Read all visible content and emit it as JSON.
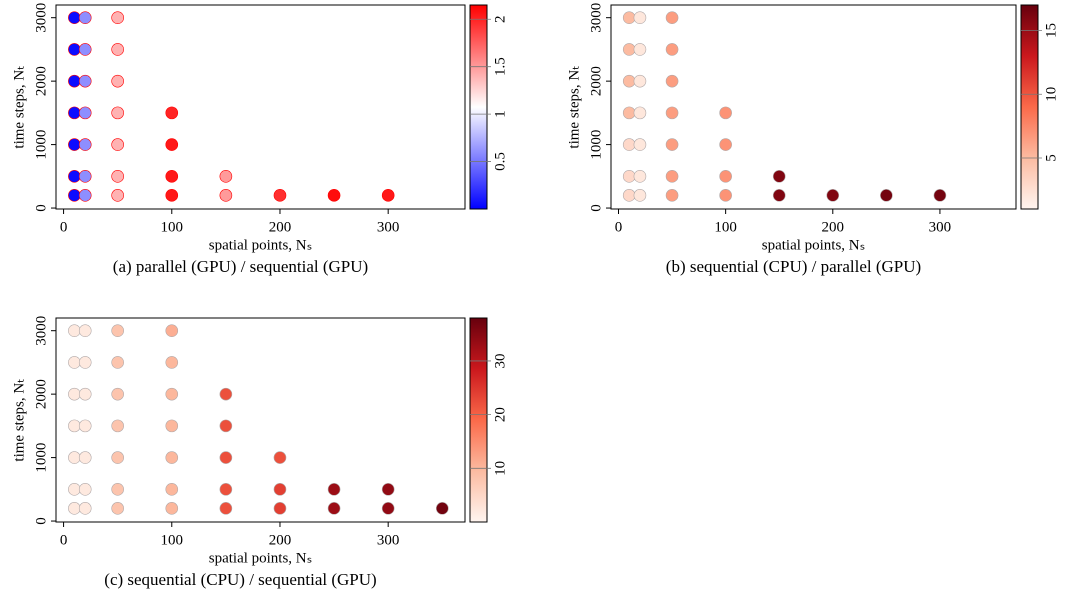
{
  "chart_data": [
    {
      "type": "scatter",
      "caption": "(a) parallel (GPU) / sequential (GPU)",
      "xlabel": "spatial points, Nₛ",
      "ylabel": "time steps, Nₜ",
      "x": [
        10,
        10,
        10,
        10,
        10,
        10,
        10,
        20,
        20,
        20,
        20,
        20,
        20,
        20,
        50,
        50,
        50,
        50,
        50,
        50,
        50,
        100,
        100,
        100,
        100,
        150,
        150,
        200,
        250,
        300
      ],
      "y": [
        200,
        500,
        1000,
        1500,
        2000,
        2500,
        3000,
        200,
        500,
        1000,
        1500,
        2000,
        2500,
        3000,
        200,
        500,
        1000,
        1500,
        2000,
        2500,
        3000,
        200,
        500,
        1000,
        1500,
        200,
        500,
        200,
        200,
        200
      ],
      "c": [
        0.05,
        0.05,
        0.05,
        0.05,
        0.05,
        0.05,
        0.05,
        0.6,
        0.6,
        0.6,
        0.6,
        0.6,
        0.6,
        0.6,
        1.4,
        1.4,
        1.4,
        1.4,
        1.4,
        1.4,
        1.4,
        2.05,
        2.05,
        2.05,
        2.0,
        1.5,
        1.5,
        1.95,
        2.1,
        2.05
      ],
      "xlim": [
        -7,
        371
      ],
      "ylim": [
        -15,
        3200
      ],
      "xticks": [
        0,
        100,
        200,
        300
      ],
      "yticks": [
        0,
        1000,
        2000,
        3000
      ],
      "clim": [
        0,
        2.15
      ],
      "cticks": [
        0.5,
        1.0,
        1.5,
        2.0
      ],
      "colormap": [
        "#0000ff",
        "#ffffff",
        "#ff0000"
      ],
      "marker_edge": "#ff0000"
    },
    {
      "type": "scatter",
      "caption": "(b) sequential (CPU) / parallel (GPU)",
      "xlabel": "spatial points, Nₛ",
      "ylabel": "time steps, Nₜ",
      "x": [
        10,
        10,
        10,
        10,
        10,
        10,
        10,
        20,
        20,
        20,
        20,
        20,
        20,
        20,
        50,
        50,
        50,
        50,
        50,
        50,
        50,
        100,
        100,
        100,
        100,
        150,
        150,
        200,
        250,
        300
      ],
      "y": [
        200,
        500,
        1000,
        1500,
        2000,
        2500,
        3000,
        200,
        500,
        1000,
        1500,
        2000,
        2500,
        3000,
        200,
        500,
        1000,
        1500,
        2000,
        2500,
        3000,
        200,
        500,
        1000,
        1500,
        200,
        500,
        200,
        200,
        200
      ],
      "c": [
        3,
        3,
        3,
        5,
        5,
        5,
        5,
        2,
        2,
        2,
        2,
        2,
        2,
        2,
        6.5,
        6.5,
        6.5,
        6.5,
        6.5,
        6.5,
        6.5,
        7,
        7,
        7,
        7,
        16,
        16,
        16,
        16.5,
        16.5
      ],
      "xlim": [
        -7,
        371
      ],
      "ylim": [
        -15,
        3200
      ],
      "xticks": [
        0,
        100,
        200,
        300
      ],
      "yticks": [
        0,
        1000,
        2000,
        3000
      ],
      "clim": [
        1,
        17
      ],
      "cticks": [
        5,
        10,
        15
      ],
      "colormap": [
        "#fff5f0",
        "#fcbba1",
        "#fb6a4a",
        "#cb181d",
        "#67000d"
      ],
      "marker_edge": "#b0a8a8"
    },
    {
      "type": "scatter",
      "caption": "(c) sequential (CPU) / sequential (GPU)",
      "xlabel": "spatial points, Nₛ",
      "ylabel": "time steps, Nₜ",
      "x": [
        10,
        10,
        10,
        10,
        10,
        10,
        10,
        20,
        20,
        20,
        20,
        20,
        20,
        20,
        50,
        50,
        50,
        50,
        50,
        50,
        50,
        100,
        100,
        100,
        100,
        100,
        100,
        100,
        150,
        150,
        150,
        150,
        150,
        200,
        200,
        200,
        250,
        250,
        300,
        300,
        350
      ],
      "y": [
        200,
        500,
        1000,
        1500,
        2000,
        2500,
        3000,
        200,
        500,
        1000,
        1500,
        2000,
        2500,
        3000,
        200,
        500,
        1000,
        1500,
        2000,
        2500,
        3000,
        200,
        500,
        1000,
        1500,
        2000,
        2500,
        3000,
        200,
        500,
        1000,
        1500,
        2000,
        200,
        500,
        1000,
        200,
        500,
        200,
        500,
        200
      ],
      "c": [
        2,
        2,
        2,
        2,
        2,
        2,
        2,
        2,
        2,
        2,
        2,
        2,
        2,
        2,
        8,
        8,
        8,
        8,
        8,
        8,
        8,
        10,
        10,
        10,
        10,
        10,
        10,
        11,
        22,
        22,
        22,
        22,
        22,
        24,
        24,
        22,
        33,
        33,
        34,
        34,
        37
      ],
      "xlim": [
        -7,
        371
      ],
      "ylim": [
        -15,
        3200
      ],
      "xticks": [
        0,
        100,
        200,
        300
      ],
      "yticks": [
        0,
        1000,
        2000,
        3000
      ],
      "clim": [
        0,
        38
      ],
      "cticks": [
        10,
        20,
        30
      ],
      "colormap": [
        "#fff5f0",
        "#fcbba1",
        "#fb6a4a",
        "#cb181d",
        "#67000d"
      ],
      "marker_edge": "#b0a8a8"
    }
  ]
}
